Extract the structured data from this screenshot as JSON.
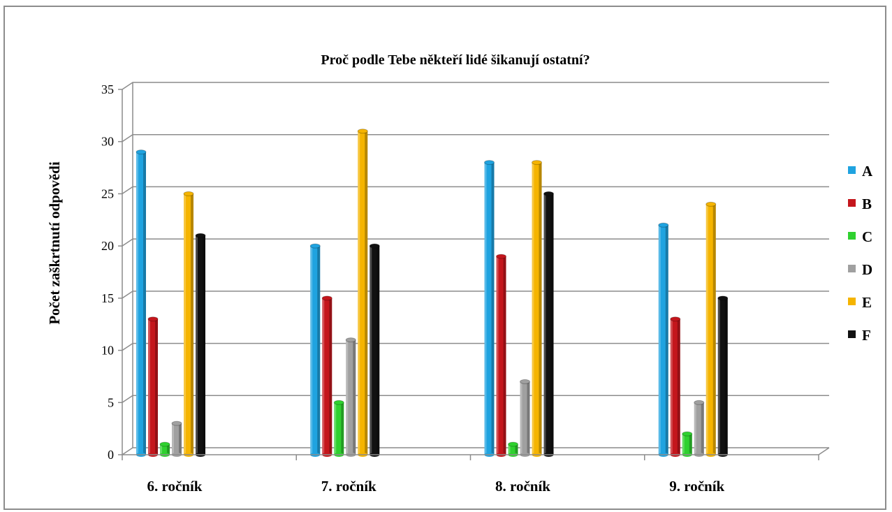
{
  "chart_data": {
    "type": "bar",
    "title": "Proč podle Tebe někteří lidé šikanují ostatní?",
    "ylabel": "Počet zaškrtnutí odpovědi",
    "xlabel": "",
    "ylim": [
      0,
      35
    ],
    "yticks": [
      "0",
      "5",
      "10",
      "15",
      "20",
      "25",
      "30",
      "35"
    ],
    "categories": [
      "6. ročník",
      "7. ročník",
      "8. ročník",
      "9. ročník"
    ],
    "series": [
      {
        "name": "A",
        "color": "#1fa3e0",
        "values": [
          29,
          20,
          28,
          22
        ]
      },
      {
        "name": "B",
        "color": "#c4161c",
        "values": [
          13,
          15,
          19,
          13
        ]
      },
      {
        "name": "C",
        "color": "#2fd12f",
        "values": [
          1,
          5,
          1,
          2
        ]
      },
      {
        "name": "D",
        "color": "#a0a0a0",
        "values": [
          3,
          11,
          7,
          5
        ]
      },
      {
        "name": "E",
        "color": "#f5b400",
        "values": [
          25,
          31,
          28,
          24
        ]
      },
      {
        "name": "F",
        "color": "#111111",
        "values": [
          21,
          20,
          25,
          15
        ]
      }
    ],
    "grid": true,
    "legend": "right"
  }
}
